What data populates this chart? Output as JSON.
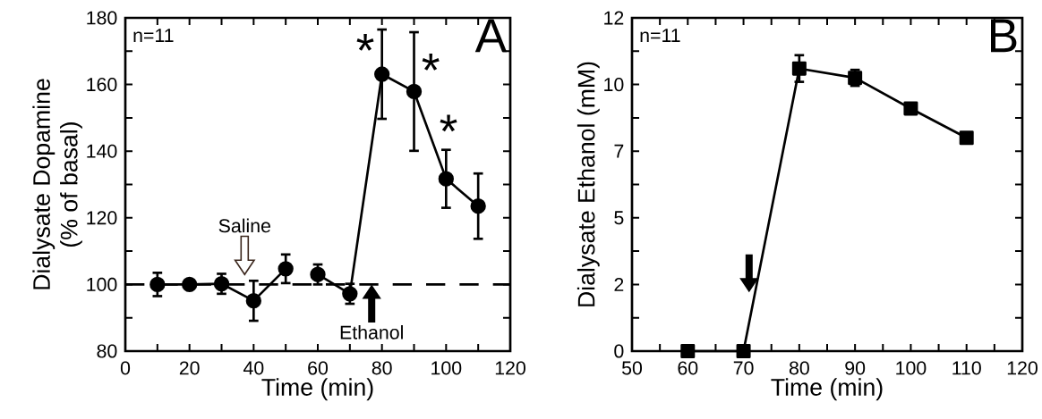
{
  "chart_data": [
    {
      "type": "line",
      "xlabel": "Time (min)",
      "ylabel": "Dialysate Dopamine\n(% of basal)",
      "xlim": [
        0,
        120
      ],
      "ylim": [
        80,
        180
      ],
      "xticks": [
        0,
        {
          "value": 10,
          "label": null
        },
        20,
        {
          "value": 30,
          "label": null
        },
        40,
        {
          "value": 50,
          "label": null
        },
        60,
        {
          "value": 70,
          "label": null
        },
        80,
        {
          "value": 90,
          "label": null
        },
        100,
        {
          "value": 110,
          "label": null
        },
        120
      ],
      "yticks": [
        80,
        {
          "value": 90,
          "label": null
        },
        100,
        {
          "value": 110,
          "label": null
        },
        120,
        {
          "value": 130,
          "label": null
        },
        140,
        {
          "value": 150,
          "label": null
        },
        160,
        {
          "value": 170,
          "label": null
        },
        180
      ],
      "marker": "circle",
      "line_style": "solid",
      "series": [
        {
          "color": "#000000",
          "x": [
            10,
            20,
            30,
            40,
            50
          ],
          "values": [
            100,
            100,
            100.2,
            95.1,
            104.7
          ],
          "errors": [
            3.5,
            1,
            3,
            6,
            4.3
          ]
        },
        {
          "color": "#000000",
          "x": [
            60,
            70,
            80,
            90,
            100,
            110
          ],
          "values": [
            103,
            97.2,
            163.1,
            157.9,
            131.7,
            123.5
          ],
          "errors": [
            3,
            3,
            13.4,
            17.8,
            8.7,
            9.8
          ]
        }
      ],
      "ref_lines": [
        {
          "axis": "y",
          "value": 100,
          "color": "#000000",
          "line_style": "dashed"
        }
      ],
      "annotations": [
        "n=11",
        "A",
        "Saline",
        "Ethanol",
        {
          "text": "*",
          "x": 80,
          "y": 163.1
        },
        {
          "text": "*",
          "x": 90,
          "y": 157.9
        },
        {
          "text": "*",
          "x": 100,
          "y": 131.7
        }
      ]
    },
    {
      "type": "line",
      "xlabel": "Time (min)",
      "ylabel": "Dialysate Ethanol (mM)",
      "xlim": [
        50,
        120
      ],
      "ylim": [
        0,
        12.5
      ],
      "xticks": [
        50,
        {
          "value": 55,
          "label": null
        },
        60,
        {
          "value": 65,
          "label": null
        },
        70,
        {
          "value": 75,
          "label": null
        },
        80,
        {
          "value": 85,
          "label": null
        },
        90,
        {
          "value": 95,
          "label": null
        },
        100,
        {
          "value": 105,
          "label": null
        },
        110,
        {
          "value": 115,
          "label": null
        },
        120
      ],
      "yticks": [
        0,
        {
          "value": 1.25,
          "label": null
        },
        {
          "value": 2.5,
          "label": "2"
        },
        {
          "value": 3.75,
          "label": null
        },
        5,
        {
          "value": 6.25,
          "label": null
        },
        {
          "value": 7.5,
          "label": "7"
        },
        {
          "value": 8.75,
          "label": null
        },
        10,
        {
          "value": 11.25,
          "label": null
        },
        {
          "value": 12.5,
          "label": "12"
        }
      ],
      "marker": "square",
      "line_style": "solid",
      "series": [
        {
          "color": "#000000",
          "x": [
            60,
            70,
            80,
            90,
            100,
            110
          ],
          "values": [
            0,
            0,
            10.6,
            10.25,
            9.1,
            8.0
          ],
          "errors": [
            null,
            null,
            0.5,
            0.3,
            null,
            null
          ]
        }
      ],
      "annotations": [
        "n=11",
        "B"
      ]
    }
  ]
}
